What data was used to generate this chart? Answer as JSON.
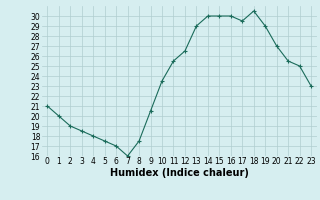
{
  "x": [
    0,
    1,
    2,
    3,
    4,
    5,
    6,
    7,
    8,
    9,
    10,
    11,
    12,
    13,
    14,
    15,
    16,
    17,
    18,
    19,
    20,
    21,
    22,
    23
  ],
  "y": [
    21,
    20,
    19,
    18.5,
    18,
    17.5,
    17,
    16,
    17.5,
    20.5,
    23.5,
    25.5,
    26.5,
    29,
    30,
    30,
    30,
    29.5,
    30.5,
    29,
    27,
    25.5,
    25,
    23
  ],
  "xlabel": "Humidex (Indice chaleur)",
  "ylim": [
    16,
    31
  ],
  "xlim": [
    -0.5,
    23.5
  ],
  "yticks": [
    16,
    17,
    18,
    19,
    20,
    21,
    22,
    23,
    24,
    25,
    26,
    27,
    28,
    29,
    30
  ],
  "xtick_labels": [
    "0",
    "1",
    "2",
    "3",
    "4",
    "5",
    "6",
    "7",
    "8",
    "9",
    "10",
    "11",
    "12",
    "13",
    "14",
    "15",
    "16",
    "17",
    "18",
    "19",
    "20",
    "21",
    "22",
    "23"
  ],
  "line_color": "#1a6b5a",
  "marker": "+",
  "bg_color": "#d6eef0",
  "grid_color": "#b0cdd0",
  "tick_fontsize": 5.5,
  "label_fontsize": 7.0
}
